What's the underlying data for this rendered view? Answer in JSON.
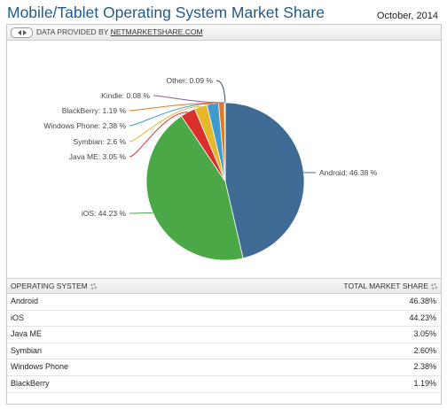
{
  "header": {
    "title": "Mobile/Tablet Operating System Market Share",
    "date": "October, 2014"
  },
  "provider": {
    "prefix": "DATA PROVIDED BY",
    "link": "NETMARKETSHARE.COM"
  },
  "chart_data": {
    "type": "pie",
    "title": "",
    "slices": [
      {
        "label": "Android",
        "value": 46.38,
        "display": "Android: 46.38 %",
        "color": "#3f6a93"
      },
      {
        "label": "iOS",
        "value": 44.23,
        "display": "iOS: 44.23 %",
        "color": "#4ba846"
      },
      {
        "label": "Java ME",
        "value": 3.05,
        "display": "Java ME: 3.05 %",
        "color": "#d9302e"
      },
      {
        "label": "Symbian",
        "value": 2.6,
        "display": "Symbian: 2.6 %",
        "color": "#e5b82b"
      },
      {
        "label": "Windows Phone",
        "value": 2.38,
        "display": "Windows Phone: 2.38 %",
        "color": "#3f9ad0"
      },
      {
        "label": "BlackBerry",
        "value": 1.19,
        "display": "BlackBerry: 1.19 %",
        "color": "#e0782a"
      },
      {
        "label": "Kindle",
        "value": 0.08,
        "display": "Kindle: 0.08 %",
        "color": "#8a5aa8"
      },
      {
        "label": "Other",
        "value": 0.09,
        "display": "Other: 0.09 %",
        "color": "#2f4f7f"
      }
    ]
  },
  "table": {
    "col1": "OPERATING SYSTEM",
    "col2": "TOTAL MARKET SHARE",
    "rows": [
      {
        "name": "Android",
        "share": "46.38%"
      },
      {
        "name": "iOS",
        "share": "44.23%"
      },
      {
        "name": "Java ME",
        "share": "3.05%"
      },
      {
        "name": "Symbian",
        "share": "2.60%"
      },
      {
        "name": "Windows Phone",
        "share": "2.38%"
      },
      {
        "name": "BlackBerry",
        "share": "1.19%"
      }
    ]
  }
}
